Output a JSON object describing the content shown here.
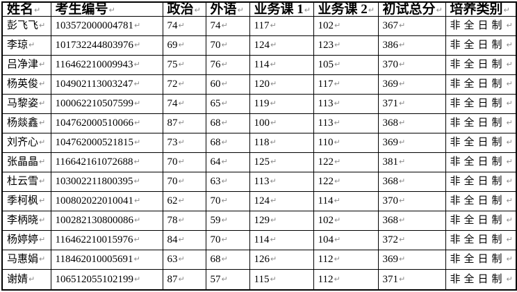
{
  "document": {
    "background_color": "#ffffff",
    "border_color": "#000000",
    "text_color": "#000000",
    "paragraph_mark": "↵",
    "paragraph_mark_color": "#8a8a8a"
  },
  "table": {
    "columns": [
      {
        "key": "name",
        "label": "姓名"
      },
      {
        "key": "candidate-id",
        "label": "考生编号"
      },
      {
        "key": "politics",
        "label": "政治"
      },
      {
        "key": "foreign-language",
        "label": "外语"
      },
      {
        "key": "course-1",
        "label": "业务课 1"
      },
      {
        "key": "course-2",
        "label": "业务课 2"
      },
      {
        "key": "total-score",
        "label": "初试总分"
      },
      {
        "key": "training-type",
        "label": "培养类别"
      }
    ],
    "rows": [
      [
        "彭飞飞",
        "103572000004781",
        "74",
        "74",
        "117",
        "102",
        "367",
        "非全日制"
      ],
      [
        "李琼",
        "101732244803976",
        "69",
        "70",
        "124",
        "123",
        "386",
        "非全日制"
      ],
      [
        "吕净津",
        "116462210009943",
        "75",
        "76",
        "114",
        "105",
        "370",
        "非全日制"
      ],
      [
        "杨英俊",
        "104902113003247",
        "72",
        "60",
        "120",
        "117",
        "369",
        "非全日制"
      ],
      [
        "马黎姿",
        "100062210507599",
        "74",
        "65",
        "119",
        "113",
        "371",
        "非全日制"
      ],
      [
        "杨燚鑫",
        "104762000510066",
        "87",
        "68",
        "100",
        "113",
        "368",
        "非全日制"
      ],
      [
        "刘齐心",
        "104762000521815",
        "73",
        "68",
        "118",
        "110",
        "369",
        "非全日制"
      ],
      [
        "张晶晶",
        "116642161072688",
        "70",
        "64",
        "125",
        "122",
        "381",
        "非全日制"
      ],
      [
        "杜云雪",
        "103002211800395",
        "70",
        "63",
        "113",
        "122",
        "368",
        "非全日制"
      ],
      [
        "季柯枫",
        "100802022010041",
        "62",
        "70",
        "124",
        "114",
        "370",
        "非全日制"
      ],
      [
        "李柄晓",
        "100282130800086",
        "78",
        "59",
        "129",
        "102",
        "368",
        "非全日制"
      ],
      [
        "杨婷婷",
        "116462210015976",
        "84",
        "70",
        "114",
        "104",
        "372",
        "非全日制"
      ],
      [
        "马惠娟",
        "118462010005691",
        "63",
        "68",
        "126",
        "112",
        "369",
        "非全日制"
      ],
      [
        "谢婧",
        "106512055102199",
        "87",
        "57",
        "115",
        "112",
        "371",
        "非全日制"
      ]
    ]
  }
}
